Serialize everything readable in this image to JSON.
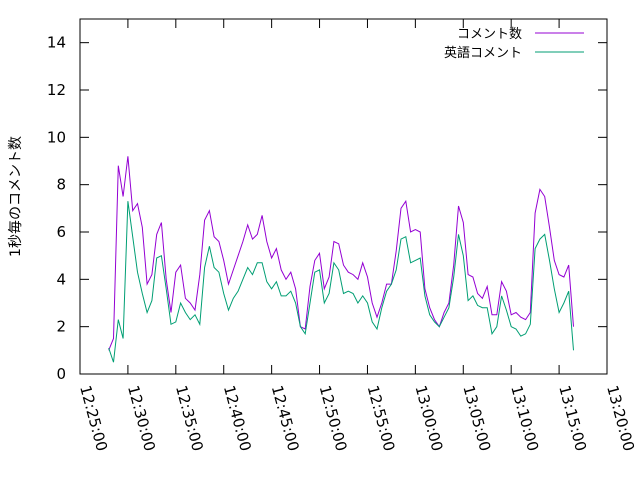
{
  "chart_data": {
    "type": "line",
    "title": "",
    "xlabel": "",
    "ylabel": "1秒毎のコメント数",
    "ylim": [
      0,
      15
    ],
    "yticks": [
      0,
      2,
      4,
      6,
      8,
      10,
      12,
      14
    ],
    "xlim": [
      "12:25:00",
      "13:20:00"
    ],
    "xticks": [
      "12:25:00",
      "12:30:00",
      "12:35:00",
      "12:40:00",
      "12:45:00",
      "12:50:00",
      "12:55:00",
      "13:00:00",
      "13:05:00",
      "13:10:00",
      "13:15:00",
      "13:20:00"
    ],
    "legend_position": "top-right",
    "grid": false,
    "x": [
      "12:28:00",
      "12:28:30",
      "12:29:00",
      "12:29:30",
      "12:30:00",
      "12:30:30",
      "12:31:00",
      "12:31:30",
      "12:32:00",
      "12:32:30",
      "12:33:00",
      "12:33:30",
      "12:34:00",
      "12:34:30",
      "12:35:00",
      "12:35:30",
      "12:36:00",
      "12:36:30",
      "12:37:00",
      "12:37:30",
      "12:38:00",
      "12:38:30",
      "12:39:00",
      "12:39:30",
      "12:40:00",
      "12:40:30",
      "12:41:00",
      "12:41:30",
      "12:42:00",
      "12:42:30",
      "12:43:00",
      "12:43:30",
      "12:44:00",
      "12:44:30",
      "12:45:00",
      "12:45:30",
      "12:46:00",
      "12:46:30",
      "12:47:00",
      "12:47:30",
      "12:48:00",
      "12:48:30",
      "12:49:00",
      "12:49:30",
      "12:50:00",
      "12:50:30",
      "12:51:00",
      "12:51:30",
      "12:52:00",
      "12:52:30",
      "12:53:00",
      "12:53:30",
      "12:54:00",
      "12:54:30",
      "12:55:00",
      "12:55:30",
      "12:56:00",
      "12:56:30",
      "12:57:00",
      "12:57:30",
      "12:58:00",
      "12:58:30",
      "12:59:00",
      "12:59:30",
      "13:00:00",
      "13:00:30",
      "13:01:00",
      "13:01:30",
      "13:02:00",
      "13:02:30",
      "13:03:00",
      "13:03:30",
      "13:04:00",
      "13:04:30",
      "13:05:00",
      "13:05:30",
      "13:06:00",
      "13:06:30",
      "13:07:00",
      "13:07:30",
      "13:08:00",
      "13:08:30",
      "13:09:00",
      "13:09:30",
      "13:10:00",
      "13:10:30",
      "13:11:00",
      "13:11:30",
      "13:12:00",
      "13:12:30",
      "13:13:00",
      "13:13:30",
      "13:14:00",
      "13:14:30",
      "13:15:00",
      "13:15:30",
      "13:16:00",
      "13:16:30"
    ],
    "series": [
      {
        "name": "コメント数",
        "color": "#9400d3",
        "values": [
          1.0,
          1.5,
          8.8,
          7.5,
          9.2,
          6.9,
          7.2,
          6.2,
          3.8,
          4.2,
          5.9,
          6.4,
          4.0,
          2.6,
          4.3,
          4.6,
          3.2,
          3.0,
          2.7,
          4.2,
          6.5,
          6.9,
          5.8,
          5.6,
          4.8,
          3.8,
          4.4,
          5.0,
          5.6,
          6.3,
          5.7,
          5.9,
          6.7,
          5.6,
          4.9,
          5.3,
          4.4,
          4.0,
          4.3,
          3.6,
          2.0,
          1.9,
          3.7,
          4.8,
          5.1,
          3.6,
          4.1,
          5.6,
          5.5,
          4.6,
          4.3,
          4.2,
          4.0,
          4.7,
          4.1,
          3.0,
          2.4,
          3.0,
          3.8,
          3.8,
          5.2,
          7.0,
          7.3,
          6.0,
          6.1,
          6.0,
          3.6,
          2.8,
          2.3,
          2.0,
          2.6,
          3.0,
          4.6,
          7.1,
          6.4,
          4.2,
          4.1,
          3.4,
          3.2,
          3.7,
          2.5,
          2.5,
          3.9,
          3.5,
          2.5,
          2.6,
          2.4,
          2.3,
          2.6,
          6.8,
          7.8,
          7.5,
          6.2,
          4.8,
          4.2,
          4.1,
          4.6,
          2.0
        ]
      },
      {
        "name": "英語コメント",
        "color": "#009e73",
        "values": [
          1.1,
          0.5,
          2.3,
          1.5,
          7.3,
          5.8,
          4.3,
          3.4,
          2.6,
          3.1,
          4.9,
          5.0,
          3.6,
          2.1,
          2.2,
          3.0,
          2.6,
          2.3,
          2.5,
          2.1,
          4.5,
          5.4,
          4.5,
          4.3,
          3.4,
          2.7,
          3.2,
          3.5,
          4.0,
          4.5,
          4.2,
          4.7,
          4.7,
          3.9,
          3.6,
          3.9,
          3.3,
          3.3,
          3.5,
          3.0,
          2.0,
          1.7,
          3.0,
          4.3,
          4.4,
          3.0,
          3.4,
          4.7,
          4.4,
          3.4,
          3.5,
          3.4,
          3.0,
          3.3,
          3.0,
          2.2,
          1.9,
          2.8,
          3.5,
          3.8,
          4.4,
          5.7,
          5.8,
          4.7,
          4.8,
          4.9,
          3.3,
          2.5,
          2.2,
          2.0,
          2.4,
          2.8,
          4.1,
          5.9,
          5.0,
          3.1,
          3.3,
          2.9,
          2.8,
          2.8,
          1.7,
          2.0,
          3.3,
          2.7,
          2.0,
          1.9,
          1.6,
          1.7,
          2.1,
          5.3,
          5.7,
          5.9,
          4.8,
          3.6,
          2.6,
          3.0,
          3.5,
          1.0
        ]
      }
    ]
  }
}
